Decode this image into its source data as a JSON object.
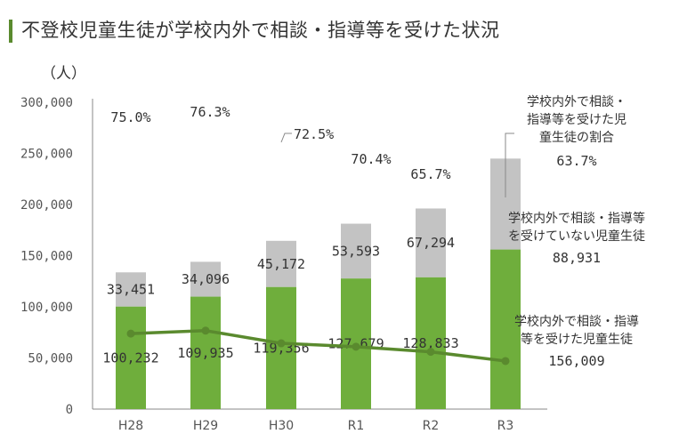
{
  "page": {
    "title": "不登校児童生徒が学校内外で相談・指導等を受けた状況",
    "unit_label": "（人）"
  },
  "colors": {
    "accent": "#5a8a2e",
    "bar_green": "#6fae3c",
    "bar_grey": "#c3c3c3",
    "line": "#5a8a2e"
  },
  "chart_data": {
    "type": "bar",
    "stacked": true,
    "categories": [
      "H28",
      "H29",
      "H30",
      "R1",
      "R2",
      "R3"
    ],
    "ylim": [
      0,
      300000
    ],
    "yticks": [
      0,
      50000,
      100000,
      150000,
      200000,
      250000,
      300000
    ],
    "ytick_labels": [
      "0",
      "50,000",
      "100,000",
      "150,000",
      "200,000",
      "250,000",
      "300,000"
    ],
    "series": [
      {
        "name": "学校内外で相談・指導等を受けた児童生徒",
        "values": [
          100232,
          109935,
          119356,
          127679,
          128833,
          156009
        ],
        "labels": [
          "100,232",
          "109,935",
          "119,356",
          "127,679",
          "128,833",
          "156,009"
        ]
      },
      {
        "name": "学校内外で相談・指導等を受けていない児童生徒",
        "values": [
          33451,
          34096,
          45172,
          53593,
          67294,
          88931
        ],
        "labels": [
          "33,451",
          "34,096",
          "45,172",
          "53,593",
          "67,294",
          "88,931"
        ]
      }
    ],
    "line_series": {
      "name": "学校内外で相談・指導等を受けた児童生徒の割合",
      "values": [
        75.0,
        76.3,
        72.5,
        70.4,
        65.7,
        63.7
      ],
      "labels": [
        "75.0%",
        "76.3%",
        "72.5%",
        "70.4%",
        "65.7%",
        "63.7%"
      ]
    },
    "annotations": {
      "ratio": [
        "学校内外で相談・",
        "指導等を受けた児",
        "童生徒の割合"
      ],
      "ratio_value": "63.7%",
      "not_received": [
        "学校内外で相談・指導等",
        "を受けていない児童生徒"
      ],
      "not_received_value": "88,931",
      "received": [
        "学校内外で相談・指導",
        "等を受けた児童生徒"
      ],
      "received_value": "156,009"
    },
    "grid": false,
    "legend": "annotations-right"
  }
}
